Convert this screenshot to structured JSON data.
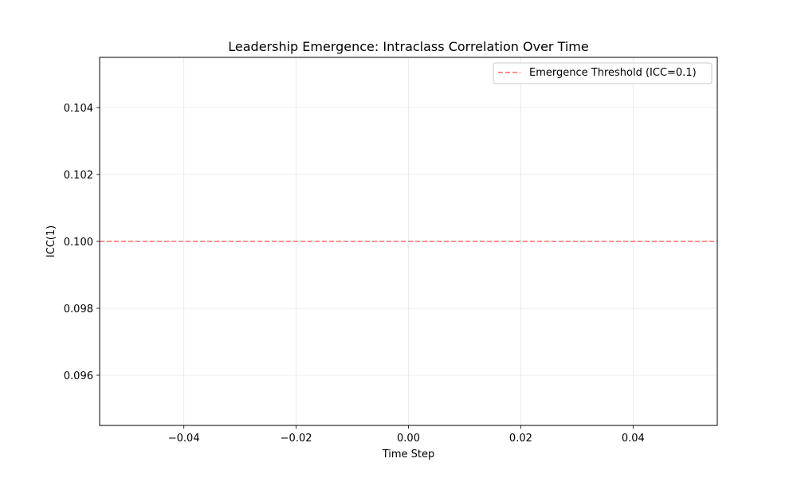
{
  "chart_data": {
    "type": "line",
    "title": "Leadership Emergence: Intraclass Correlation Over Time",
    "xlabel": "Time Step",
    "ylabel": "ICC(1)",
    "xlim": [
      -0.055,
      0.055
    ],
    "ylim": [
      0.0945,
      0.1055
    ],
    "xticks": [
      -0.04,
      -0.02,
      0.0,
      0.02,
      0.04
    ],
    "xtick_labels": [
      "−0.04",
      "−0.02",
      "0.00",
      "0.02",
      "0.04"
    ],
    "yticks": [
      0.096,
      0.098,
      0.1,
      0.102,
      0.104
    ],
    "ytick_labels": [
      "0.096",
      "0.098",
      "0.100",
      "0.102",
      "0.104"
    ],
    "grid": true,
    "legend_position": "top-right",
    "series": [
      {
        "name": "Emergence Threshold (ICC=0.1)",
        "kind": "horizontal-line",
        "y": 0.1,
        "color": "#ff6b6b",
        "linestyle": "dashed"
      }
    ]
  }
}
